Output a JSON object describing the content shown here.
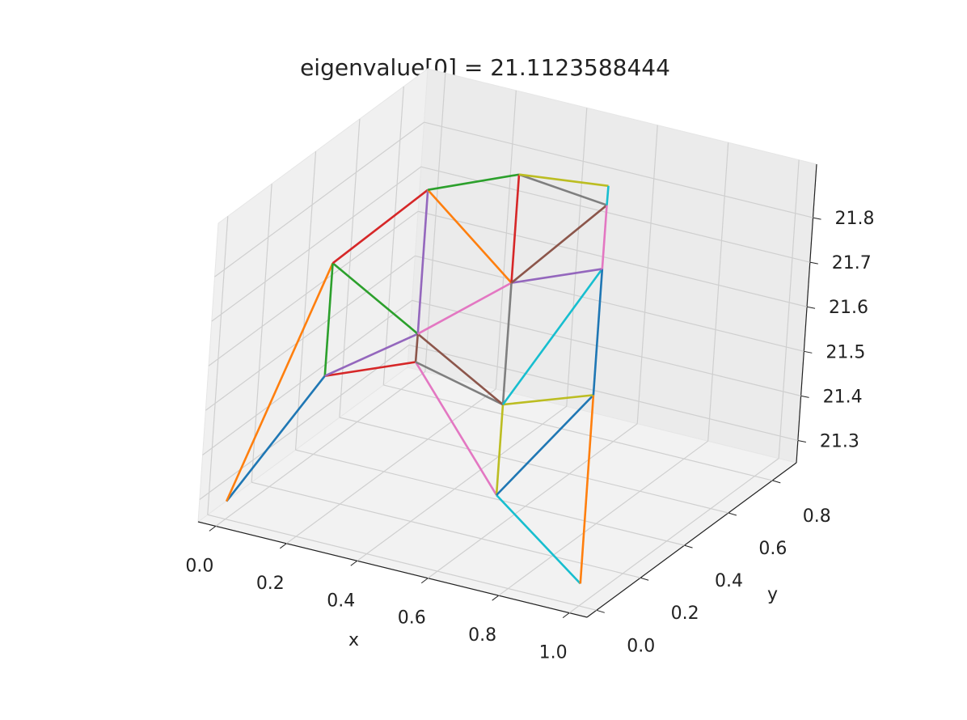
{
  "chart_data": {
    "type": "line3d",
    "title": "eigenvalue[0] = 21.1123588444",
    "xlabel": "x",
    "ylabel": "y",
    "xlim": [
      -0.05,
      1.05
    ],
    "ylim": [
      -0.0433,
      0.9093
    ],
    "zlim": [
      21.25,
      21.92
    ],
    "xticks": [
      {
        "value": 0,
        "label": "0.0"
      },
      0.2,
      0.4,
      0.6,
      0.8,
      {
        "value": 1,
        "label": "1.0"
      }
    ],
    "yticks": [
      {
        "value": 0,
        "label": "0.0"
      },
      0.2,
      0.4,
      0.6,
      0.8
    ],
    "zticks": [
      21.3,
      21.4,
      21.5,
      21.6,
      21.7,
      21.8
    ],
    "grid": true,
    "series": [
      {
        "color": "#1f77b4",
        "x": [
          0,
          0.25
        ],
        "y": [
          0,
          0
        ],
        "z": [
          21.29,
          21.62
        ]
      },
      {
        "color": "#ff7f0e",
        "x": [
          0,
          0.125
        ],
        "y": [
          0,
          0.2165
        ],
        "z": [
          21.29,
          21.77
        ]
      },
      {
        "color": "#2ca02c",
        "x": [
          0.25,
          0.125
        ],
        "y": [
          0,
          0.2165
        ],
        "z": [
          21.62,
          21.77
        ]
      },
      {
        "color": "#d62728",
        "x": [
          0.25,
          0.5
        ],
        "y": [
          0,
          0
        ],
        "z": [
          21.62,
          21.7
        ]
      },
      {
        "color": "#9467bd",
        "x": [
          0.25,
          0.375
        ],
        "y": [
          0,
          0.2165
        ],
        "z": [
          21.62,
          21.66
        ]
      },
      {
        "color": "#8c564b",
        "x": [
          0.5,
          0.375
        ],
        "y": [
          0,
          0.2165
        ],
        "z": [
          21.7,
          21.66
        ]
      },
      {
        "color": "#e377c2",
        "x": [
          0.5,
          0.75
        ],
        "y": [
          0,
          0
        ],
        "z": [
          21.7,
          21.45
        ]
      },
      {
        "color": "#7f7f7f",
        "x": [
          0.5,
          0.625
        ],
        "y": [
          0,
          0.2165
        ],
        "z": [
          21.7,
          21.55
        ]
      },
      {
        "color": "#bcbd22",
        "x": [
          0.75,
          0.625
        ],
        "y": [
          0,
          0.2165
        ],
        "z": [
          21.45,
          21.55
        ]
      },
      {
        "color": "#17becf",
        "x": [
          0.75,
          1
        ],
        "y": [
          0,
          0
        ],
        "z": [
          21.45,
          21.3
        ]
      },
      {
        "color": "#1f77b4",
        "x": [
          0.75,
          0.875
        ],
        "y": [
          0,
          0.2165
        ],
        "z": [
          21.45,
          21.62
        ]
      },
      {
        "color": "#ff7f0e",
        "x": [
          1,
          0.875
        ],
        "y": [
          0,
          0.2165
        ],
        "z": [
          21.3,
          21.62
        ]
      },
      {
        "color": "#2ca02c",
        "x": [
          0.125,
          0.375
        ],
        "y": [
          0.2165,
          0.2165
        ],
        "z": [
          21.77,
          21.66
        ]
      },
      {
        "color": "#d62728",
        "x": [
          0.125,
          0.25
        ],
        "y": [
          0.2165,
          0.433
        ],
        "z": [
          21.77,
          21.88
        ]
      },
      {
        "color": "#9467bd",
        "x": [
          0.375,
          0.25
        ],
        "y": [
          0.2165,
          0.433
        ],
        "z": [
          21.66,
          21.88
        ]
      },
      {
        "color": "#8c564b",
        "x": [
          0.375,
          0.625
        ],
        "y": [
          0.2165,
          0.2165
        ],
        "z": [
          21.66,
          21.55
        ]
      },
      {
        "color": "#e377c2",
        "x": [
          0.375,
          0.5
        ],
        "y": [
          0.2165,
          0.433
        ],
        "z": [
          21.66,
          21.72
        ]
      },
      {
        "color": "#7f7f7f",
        "x": [
          0.625,
          0.5
        ],
        "y": [
          0.2165,
          0.433
        ],
        "z": [
          21.55,
          21.72
        ]
      },
      {
        "color": "#bcbd22",
        "x": [
          0.625,
          0.875
        ],
        "y": [
          0.2165,
          0.2165
        ],
        "z": [
          21.55,
          21.62
        ]
      },
      {
        "color": "#17becf",
        "x": [
          0.625,
          0.75
        ],
        "y": [
          0.2165,
          0.433
        ],
        "z": [
          21.55,
          21.8
        ]
      },
      {
        "color": "#1f77b4",
        "x": [
          0.875,
          0.75
        ],
        "y": [
          0.2165,
          0.433
        ],
        "z": [
          21.62,
          21.8
        ]
      },
      {
        "color": "#ff7f0e",
        "x": [
          0.25,
          0.5
        ],
        "y": [
          0.433,
          0.433
        ],
        "z": [
          21.88,
          21.72
        ]
      },
      {
        "color": "#2ca02c",
        "x": [
          0.25,
          0.375
        ],
        "y": [
          0.433,
          0.6495
        ],
        "z": [
          21.88,
          21.86
        ]
      },
      {
        "color": "#d62728",
        "x": [
          0.5,
          0.375
        ],
        "y": [
          0.433,
          0.6495
        ],
        "z": [
          21.72,
          21.86
        ]
      },
      {
        "color": "#9467bd",
        "x": [
          0.5,
          0.75
        ],
        "y": [
          0.433,
          0.433
        ],
        "z": [
          21.72,
          21.8
        ]
      },
      {
        "color": "#8c564b",
        "x": [
          0.5,
          0.625
        ],
        "y": [
          0.433,
          0.6495
        ],
        "z": [
          21.72,
          21.84
        ]
      },
      {
        "color": "#e377c2",
        "x": [
          0.75,
          0.625
        ],
        "y": [
          0.433,
          0.6495
        ],
        "z": [
          21.8,
          21.84
        ]
      },
      {
        "color": "#7f7f7f",
        "x": [
          0.375,
          0.625
        ],
        "y": [
          0.6495,
          0.6495
        ],
        "z": [
          21.86,
          21.84
        ]
      },
      {
        "color": "#bcbd22",
        "x": [
          0.375,
          0.5
        ],
        "y": [
          0.6495,
          0.866
        ],
        "z": [
          21.86,
          21.78
        ]
      },
      {
        "color": "#17becf",
        "x": [
          0.625,
          0.5
        ],
        "y": [
          0.6495,
          0.866
        ],
        "z": [
          21.84,
          21.78
        ]
      }
    ]
  }
}
